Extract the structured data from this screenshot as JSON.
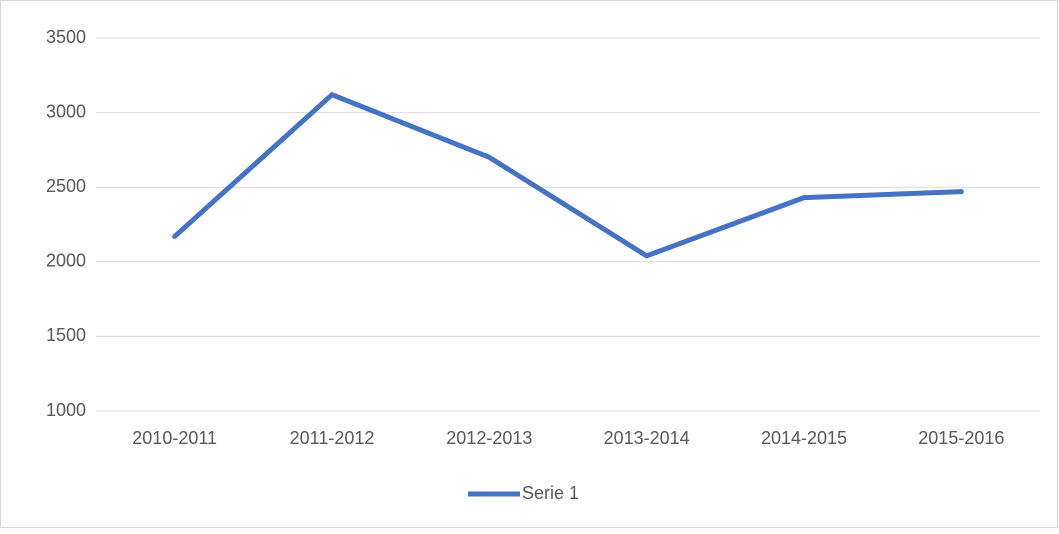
{
  "chart_data": {
    "type": "line",
    "categories": [
      "2010-2011",
      "2011-2012",
      "2012-2013",
      "2013-2014",
      "2014-2015",
      "2015-2016"
    ],
    "series": [
      {
        "name": "Serie 1",
        "color": "#4472c4",
        "values": [
          2170,
          3120,
          2700,
          2040,
          2430,
          2470
        ]
      }
    ],
    "ylim": [
      1000,
      3500
    ],
    "yticks": [
      1000,
      1500,
      2000,
      2500,
      3000,
      3500
    ],
    "grid": true,
    "legend": "bottom"
  }
}
